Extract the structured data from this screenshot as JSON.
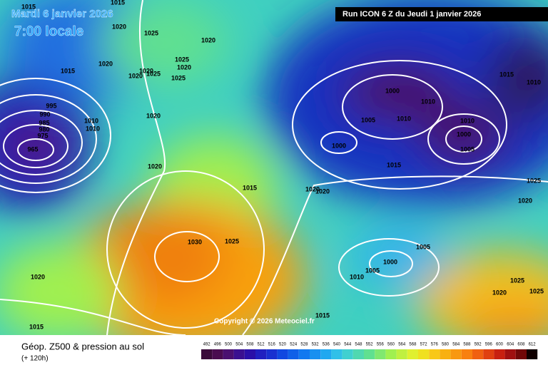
{
  "header": {
    "date": "Mardi 6 janvier 2026",
    "time": "7:00 locale",
    "run": "Run ICON 6 Z du Jeudi 1 janvier 2026"
  },
  "copyright": "Copyright © 2026 Meteociel.fr",
  "footer": {
    "title": "Géop. Z500 & pression au sol",
    "lead": "(+ 120h)"
  },
  "scale": {
    "labels": [
      492,
      496,
      500,
      504,
      508,
      512,
      516,
      520,
      524,
      528,
      532,
      536,
      540,
      544,
      548,
      552,
      556,
      560,
      564,
      568,
      572,
      576,
      580,
      584,
      588,
      592,
      596,
      600,
      604,
      608,
      612
    ],
    "colors": [
      "#3a0a3a",
      "#4a0c50",
      "#4a1070",
      "#3a1090",
      "#2a10a8",
      "#2020c0",
      "#1830d0",
      "#1048e0",
      "#1060e8",
      "#1078f0",
      "#1890f0",
      "#20a8f0",
      "#30c0e8",
      "#40d0d0",
      "#50d8b0",
      "#60e090",
      "#80e870",
      "#a0f050",
      "#c0f040",
      "#e0f030",
      "#f0e020",
      "#f8c818",
      "#f8b010",
      "#f89810",
      "#f88010",
      "#f06010",
      "#e04010",
      "#c82010",
      "#a01010",
      "#700808",
      "#100000"
    ]
  },
  "isobars": [
    "1015",
    "1015",
    "1020",
    "1025",
    "1020",
    "1015",
    "1020",
    "1025",
    "1020",
    "1020",
    "1020",
    "1025",
    "1025",
    "995",
    "990",
    "985",
    "980",
    "975",
    "965",
    "1010",
    "1010",
    "1020",
    "1020",
    "1015",
    "1020",
    "1020",
    "1030",
    "1025",
    "1020",
    "1015",
    "1015",
    "1000",
    "1010",
    "1005",
    "1010",
    "1010",
    "1000",
    "1005",
    "1000",
    "1015",
    "1015",
    "1010",
    "1025",
    "1020",
    "1005",
    "1000",
    "1005",
    "1010",
    "1025",
    "1020",
    "1025"
  ]
}
